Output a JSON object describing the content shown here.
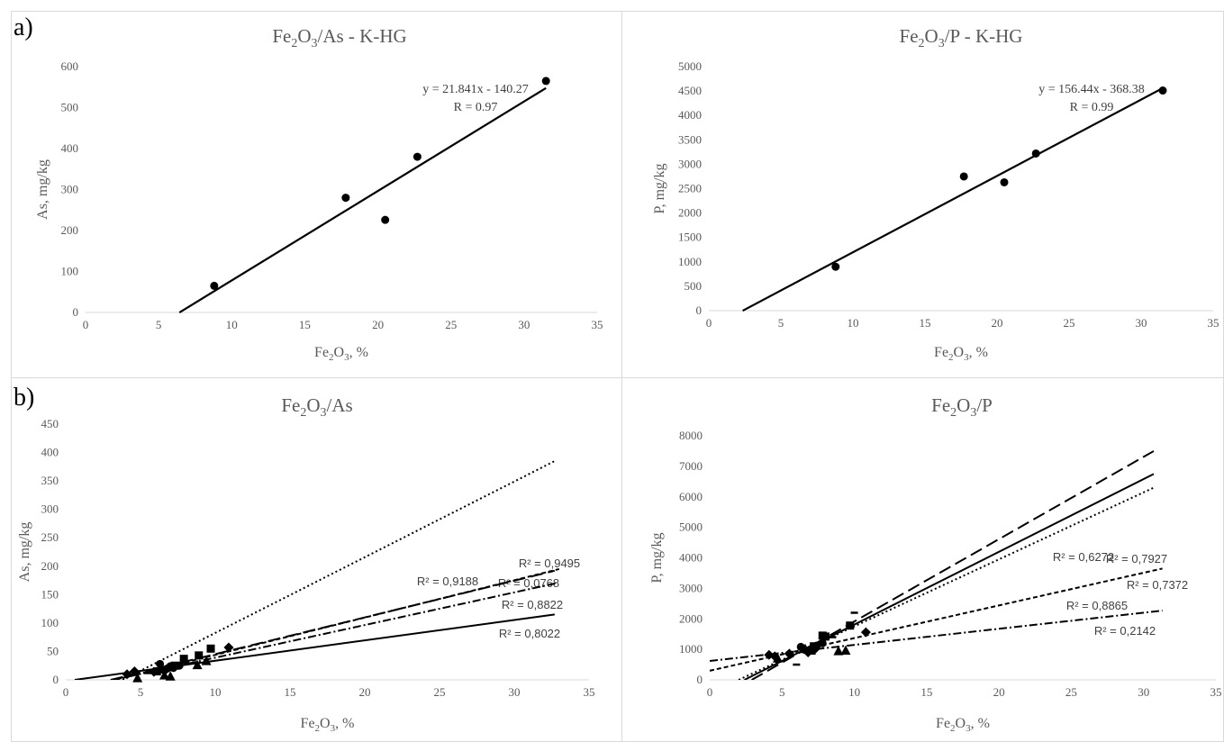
{
  "panel_labels": {
    "a": "a)",
    "b": "b)"
  },
  "chart_data": [
    {
      "type": "scatter",
      "title": "Fe2O3/As - K-HG",
      "title_parts": {
        "base": "Fe",
        "sub1": "2",
        "mid": "O",
        "sub2": "3",
        "rest": "/As - K-HG"
      },
      "xlabel": "Fe2O3, %",
      "ylabel": "As, mg/kg",
      "xlim": [
        0,
        35
      ],
      "ylim": [
        0,
        600
      ],
      "xticks": [
        0,
        5,
        10,
        15,
        20,
        25,
        30,
        35
      ],
      "yticks": [
        0,
        100,
        200,
        300,
        400,
        500,
        600
      ],
      "points": [
        [
          8.8,
          65
        ],
        [
          17.8,
          280
        ],
        [
          20.5,
          226
        ],
        [
          22.7,
          380
        ],
        [
          31.5,
          565
        ]
      ],
      "trendline": {
        "slope": 21.841,
        "intercept": -140.27,
        "x": [
          6.42,
          31.5
        ]
      },
      "annotation": [
        "y = 21.841x - 140.27",
        "R = 0.97"
      ],
      "grid": false
    },
    {
      "type": "scatter",
      "title": "Fe2O3/P - K-HG",
      "title_parts": {
        "base": "Fe",
        "sub1": "2",
        "mid": "O",
        "sub2": "3",
        "rest": "/P - K-HG"
      },
      "xlabel": "Fe2O3, %",
      "ylabel": "P, mg/kg",
      "xlim": [
        0,
        35
      ],
      "ylim": [
        0,
        5000
      ],
      "xticks": [
        0,
        5,
        10,
        15,
        20,
        25,
        30,
        35
      ],
      "yticks": [
        0,
        500,
        1000,
        1500,
        2000,
        2500,
        3000,
        3500,
        4000,
        4500,
        5000
      ],
      "points": [
        [
          8.8,
          900
        ],
        [
          17.7,
          2750
        ],
        [
          20.5,
          2630
        ],
        [
          22.7,
          3220
        ],
        [
          31.5,
          4510
        ]
      ],
      "trendline": {
        "slope": 156.44,
        "intercept": -368.38,
        "x": [
          2.35,
          31.5
        ]
      },
      "annotation": [
        "y = 156.44x - 368.38",
        "R = 0.99"
      ],
      "grid": false
    },
    {
      "type": "scatter",
      "title": "Fe2O3/As",
      "title_parts": {
        "base": "Fe",
        "sub1": "2",
        "mid": "O",
        "sub2": "3",
        "rest": "/As"
      },
      "xlabel": "Fe2O3, %",
      "ylabel": "As, mg/kg",
      "xlim": [
        0,
        35
      ],
      "ylim": [
        0,
        450
      ],
      "xticks": [
        0,
        5,
        10,
        15,
        20,
        25,
        30,
        35
      ],
      "yticks": [
        0,
        50,
        100,
        150,
        200,
        250,
        300,
        350,
        400,
        450
      ],
      "series": [
        {
          "marker": "circle",
          "dash": "solid",
          "points": [
            [
              6.3,
              28
            ],
            [
              6.5,
              18
            ],
            [
              6.8,
              20
            ],
            [
              7.0,
              24
            ],
            [
              7.2,
              21
            ],
            [
              7.6,
              25
            ]
          ],
          "line": [
            [
              0.6,
              0
            ],
            [
              32.7,
              115
            ]
          ],
          "r2": "R² = 0,0768"
        },
        {
          "marker": "square",
          "dash": "dotted",
          "points": [
            [
              6.1,
              15
            ],
            [
              7.3,
              25
            ],
            [
              7.9,
              37
            ],
            [
              8.9,
              43
            ],
            [
              9.7,
              55
            ]
          ],
          "line": [
            [
              3.8,
              0
            ],
            [
              32.7,
              385
            ]
          ],
          "r2": "R² = 0,9495"
        },
        {
          "marker": "diamond",
          "dash": "short-dash",
          "points": [
            [
              4.1,
              10
            ],
            [
              4.6,
              15
            ],
            [
              5.9,
              14
            ],
            [
              6.7,
              18
            ],
            [
              10.9,
              57
            ]
          ],
          "line": [
            [
              3.3,
              0
            ],
            [
              33.0,
              195
            ]
          ],
          "r2": "R² = 0,9188"
        },
        {
          "marker": "triangle",
          "dash": "dash-dot",
          "points": [
            [
              4.8,
              3
            ],
            [
              6.6,
              8
            ],
            [
              7.0,
              6
            ],
            [
              8.8,
              26
            ],
            [
              9.4,
              33
            ]
          ],
          "line": [
            [
              3.2,
              0
            ],
            [
              32.8,
              170
            ]
          ],
          "r2": "R² = 0,8822"
        },
        {
          "marker": "x",
          "dash": "long-dash",
          "points": [
            [
              5.5,
              12
            ],
            [
              6.9,
              20
            ],
            [
              8.0,
              30
            ]
          ],
          "line": [
            [
              3.0,
              0
            ],
            [
              32.7,
              192
            ]
          ],
          "r2": "R² = 0,8022"
        }
      ],
      "grid": false
    },
    {
      "type": "scatter",
      "title": "Fe2O3/P",
      "title_parts": {
        "base": "Fe",
        "sub1": "2",
        "mid": "O",
        "sub2": "3",
        "rest": "/P"
      },
      "xlabel": "Fe2O3, %",
      "ylabel": "P, mg/kg",
      "xlim": [
        0,
        35
      ],
      "ylim": [
        0,
        8000
      ],
      "xticks": [
        0,
        5,
        10,
        15,
        20,
        25,
        30,
        35
      ],
      "yticks": [
        0,
        1000,
        2000,
        3000,
        4000,
        5000,
        6000,
        7000,
        8000
      ],
      "series": [
        {
          "marker": "circle",
          "dash": "solid",
          "points": [
            [
              6.3,
              1080
            ],
            [
              6.6,
              980
            ],
            [
              7.0,
              1010
            ],
            [
              7.4,
              1120
            ],
            [
              7.8,
              1200
            ]
          ],
          "line": [
            [
              2.4,
              0
            ],
            [
              30.7,
              6750
            ]
          ],
          "r2": "R² = 0,6272"
        },
        {
          "marker": "square",
          "dash": "dotted",
          "points": [
            [
              7.2,
              1100
            ],
            [
              7.8,
              1450
            ],
            [
              8.0,
              1420
            ],
            [
              9.7,
              1780
            ]
          ],
          "line": [
            [
              2.0,
              0
            ],
            [
              30.7,
              6300
            ]
          ],
          "r2": "R² = 0,7927"
        },
        {
          "marker": "x",
          "dash": "long-dash",
          "points": [
            [
              6.0,
              500
            ],
            [
              7.0,
              900
            ],
            [
              8.5,
              1400
            ],
            [
              10.0,
              2200
            ]
          ],
          "line": [
            [
              2.9,
              0
            ],
            [
              30.7,
              7500
            ]
          ],
          "r2": "R² = 0,7372"
        },
        {
          "marker": "diamond",
          "dash": "short-dash",
          "points": [
            [
              4.1,
              820
            ],
            [
              4.5,
              770
            ],
            [
              5.5,
              860
            ],
            [
              6.8,
              900
            ],
            [
              7.3,
              1020
            ],
            [
              10.8,
              1560
            ]
          ],
          "line": [
            [
              0,
              300
            ],
            [
              31.3,
              3650
            ]
          ],
          "r2": "R² = 0,8865"
        },
        {
          "marker": "triangle",
          "dash": "dash-dot",
          "points": [
            [
              4.7,
              700
            ],
            [
              6.6,
              1010
            ],
            [
              7.0,
              960
            ],
            [
              8.9,
              940
            ],
            [
              9.4,
              960
            ]
          ],
          "line": [
            [
              0,
              620
            ],
            [
              31.3,
              2270
            ]
          ],
          "r2": "R² = 0,2142"
        }
      ],
      "grid": false
    }
  ]
}
